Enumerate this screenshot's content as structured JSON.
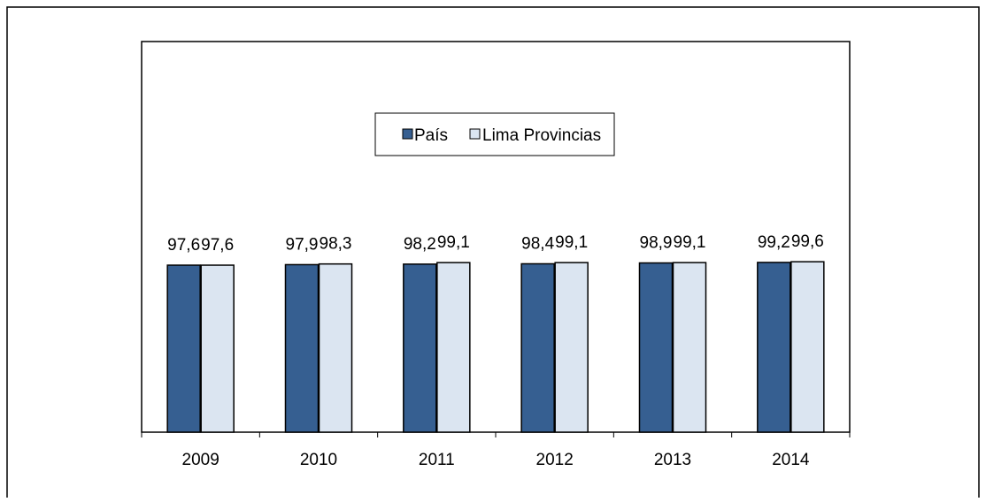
{
  "chart_data": {
    "type": "bar",
    "categories": [
      "2009",
      "2010",
      "2011",
      "2012",
      "2013",
      "2014"
    ],
    "series": [
      {
        "name": "País",
        "values": [
          97.6,
          97.9,
          98.2,
          98.4,
          98.9,
          99.2
        ],
        "labels": [
          "97,6",
          "97,9",
          "98,2",
          "98,4",
          "98,9",
          "99,2"
        ],
        "color": "#365f91"
      },
      {
        "name": "Lima Provincias",
        "values": [
          97.6,
          98.3,
          99.1,
          99.1,
          99.1,
          99.6
        ],
        "labels": [
          "97,6",
          "98,3",
          "99,1",
          "99,1",
          "99,1",
          "99,6"
        ],
        "color": "#dbe5f1"
      }
    ],
    "title": "",
    "xlabel": "",
    "ylabel": "",
    "ylim": [
      0,
      100
    ],
    "grid": false,
    "legend_position": "top-center"
  }
}
